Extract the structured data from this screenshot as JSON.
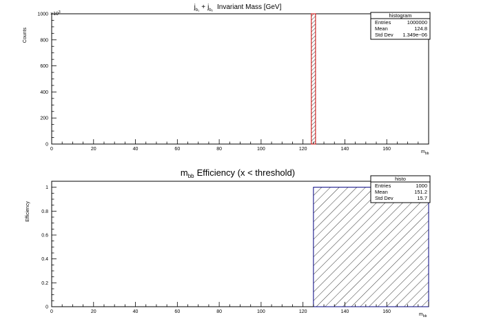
{
  "chart_data": [
    {
      "type": "bar",
      "title": "Invariant Mass [GeV]",
      "title_prefix": {
        "j1": "j",
        "sub1": "b₁",
        "plus": "+",
        "j2": "j",
        "sub2": "b₂"
      },
      "xlabel": {
        "base": "m",
        "sub": "bb"
      },
      "ylabel": "Counts",
      "y_multiplier": {
        "base": "×10",
        "exp": "3"
      },
      "xlim": [
        0,
        180
      ],
      "ylim": [
        0,
        1000
      ],
      "x_ticks": [
        0,
        20,
        40,
        60,
        80,
        100,
        120,
        140,
        160
      ],
      "y_ticks": [
        0,
        200,
        400,
        600,
        800,
        1000
      ],
      "bins": [
        {
          "x0": 124,
          "x1": 126,
          "value": 1000
        }
      ],
      "hatch": "narrow",
      "fill_color": "#ffffff",
      "line_color": "#cc0000",
      "stats": {
        "name": "histogram",
        "rows": [
          {
            "label": "Entries",
            "value": "1000000"
          },
          {
            "label": "Mean",
            "value": "124.8"
          },
          {
            "label": "Std Dev",
            "value": "1.349e−06"
          }
        ]
      }
    },
    {
      "type": "bar",
      "title": "Efficiency (x < threshold)",
      "title_prefix": {
        "base": "m",
        "sub": "bb"
      },
      "xlabel": {
        "base": "m",
        "sub": "bb"
      },
      "ylabel": "Efficiency",
      "xlim": [
        0,
        180
      ],
      "ylim": [
        0,
        1.05
      ],
      "x_ticks": [
        0,
        20,
        40,
        60,
        80,
        100,
        120,
        140,
        160
      ],
      "y_ticks": [
        0,
        0.2,
        0.4,
        0.6,
        0.8,
        1
      ],
      "y_tick_labels": [
        "0",
        "0.2",
        "0.4",
        "0.6",
        "0.8",
        "1"
      ],
      "bins": [
        {
          "x0": 125,
          "x1": 180,
          "value": 1
        }
      ],
      "hatch": "wide",
      "fill_color": "#ffffff",
      "line_color": "#000080",
      "stats": {
        "name": "histo",
        "rows": [
          {
            "label": "Entries",
            "value": "1000"
          },
          {
            "label": "Mean",
            "value": "151.2"
          },
          {
            "label": "Std Dev",
            "value": "15.7"
          }
        ]
      }
    }
  ]
}
